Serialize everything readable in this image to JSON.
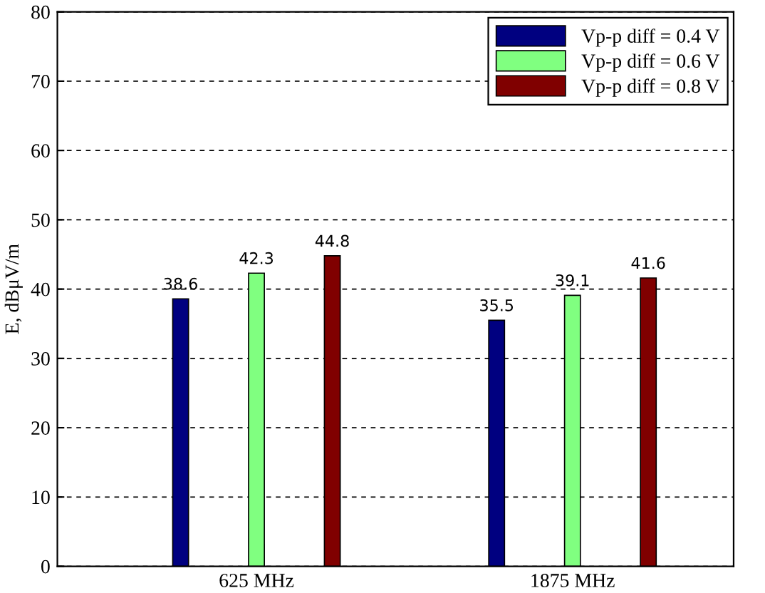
{
  "chart_data": {
    "type": "bar",
    "ylabel": "E, dBμV/m",
    "categories": [
      "625 MHz",
      "1875 MHz"
    ],
    "series": [
      {
        "name": "Vp-p diff = 0.4 V",
        "color": "#000080",
        "values": [
          38.6,
          35.5
        ]
      },
      {
        "name": "Vp-p diff = 0.6 V",
        "color": "#80ff80",
        "values": [
          42.3,
          39.1
        ]
      },
      {
        "name": "Vp-p diff = 0.8 V",
        "color": "#800000",
        "values": [
          44.8,
          41.6
        ]
      }
    ],
    "ylim": [
      0,
      80
    ],
    "yticks": [
      0,
      10,
      20,
      30,
      40,
      50,
      60,
      70,
      80
    ],
    "grid": "y",
    "legend": "top right",
    "data_labels": true
  }
}
